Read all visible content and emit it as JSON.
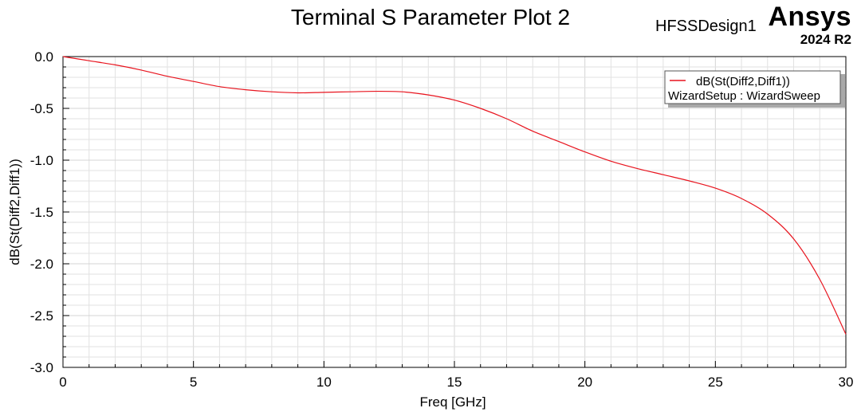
{
  "header": {
    "title": "Terminal S Parameter Plot 2",
    "design_name": "HFSSDesign1",
    "brand": "Ansys",
    "version": "2024 R2"
  },
  "legend": {
    "series_label": "dB(St(Diff2,Diff1))",
    "setup_label": "WizardSetup : WizardSweep"
  },
  "colors": {
    "series": "#e8141e",
    "grid": "#e2e2e2",
    "axis": "#000000"
  },
  "chart_data": {
    "type": "line",
    "title": "Terminal S Parameter Plot 2",
    "xlabel": "Freq [GHz]",
    "ylabel": "dB(St(Diff2,Diff1))",
    "xlim": [
      0,
      30
    ],
    "ylim": [
      -3.0,
      0.0
    ],
    "xticks": [
      "0",
      "5",
      "10",
      "15",
      "20",
      "25",
      "30"
    ],
    "yticks": [
      "0.0",
      "-0.5",
      "-1.0",
      "-1.5",
      "-2.0",
      "-2.5",
      "-3.0"
    ],
    "grid": true,
    "legend_position": "top-right",
    "series": [
      {
        "name": "dB(St(Diff2,Diff1))",
        "x": [
          0,
          1,
          2,
          3,
          4,
          5,
          6,
          7,
          8,
          9,
          10,
          11,
          12,
          13,
          14,
          15,
          16,
          17,
          18,
          19,
          20,
          21,
          22,
          23,
          24,
          25,
          26,
          27,
          28,
          29,
          30
        ],
        "y": [
          0.0,
          -0.04,
          -0.08,
          -0.13,
          -0.19,
          -0.24,
          -0.29,
          -0.32,
          -0.34,
          -0.35,
          -0.345,
          -0.34,
          -0.335,
          -0.34,
          -0.37,
          -0.42,
          -0.5,
          -0.6,
          -0.72,
          -0.82,
          -0.92,
          -1.01,
          -1.08,
          -1.14,
          -1.2,
          -1.27,
          -1.37,
          -1.52,
          -1.76,
          -2.15,
          -2.68
        ]
      }
    ]
  }
}
